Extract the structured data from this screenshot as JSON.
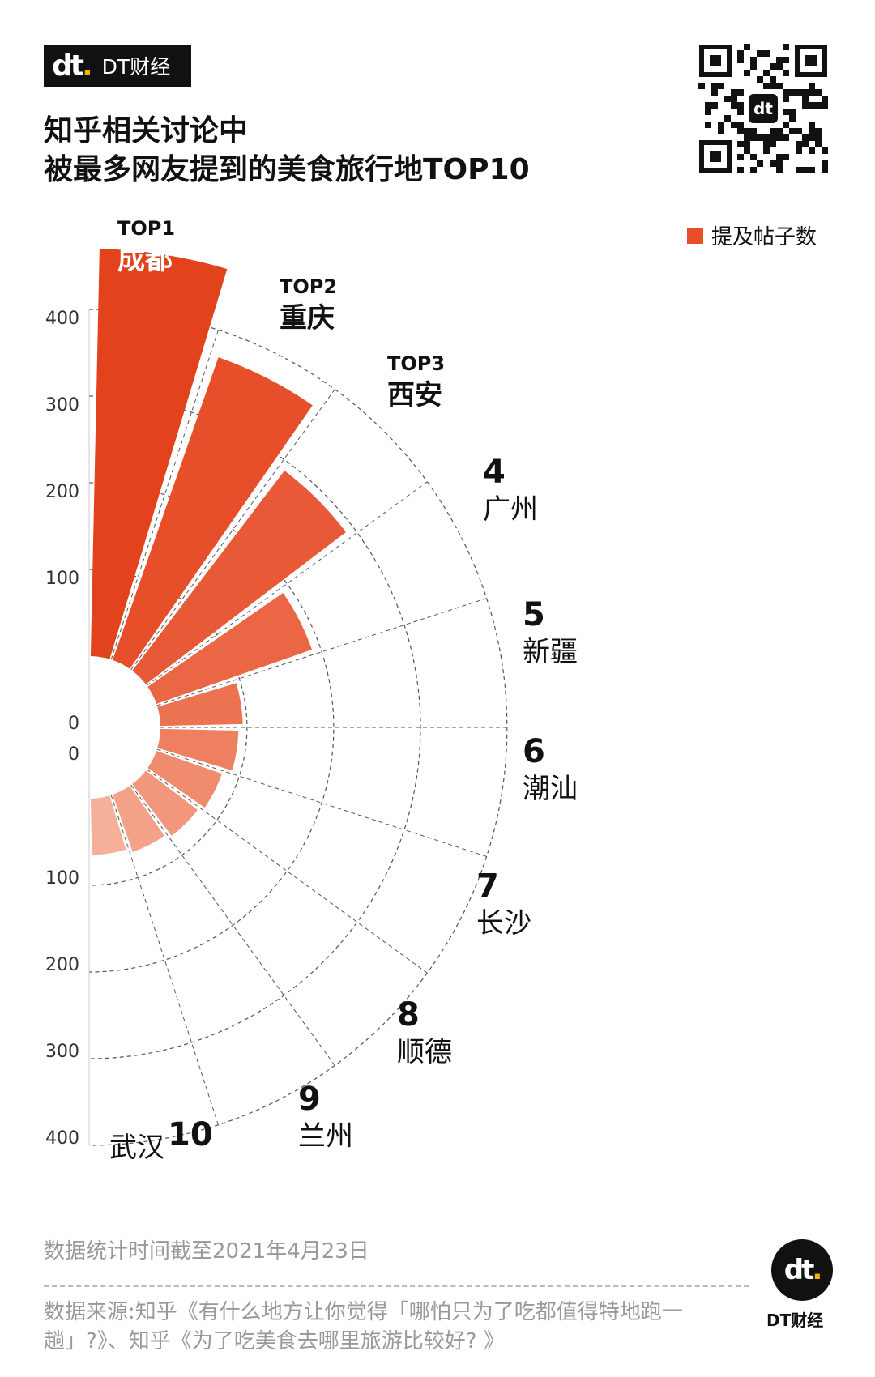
{
  "brand": {
    "mark": "dt",
    "name": "DT财经"
  },
  "title_lines": [
    "知乎相关讨论中",
    "被最多网友提到的美食旅行地TOP10"
  ],
  "legend": {
    "label": "提及帖子数",
    "color": "#e94e2b"
  },
  "colors": {
    "bar_scale": [
      "#e2431d",
      "#e64f2a",
      "#e85a37",
      "#ea6644",
      "#ec7352",
      "#ee7f60",
      "#f08b6e",
      "#f2977c",
      "#f4a38a",
      "#f6af98"
    ],
    "grid": "#555555",
    "label_dark": "#111111"
  },
  "chart_data": {
    "type": "bar",
    "variant": "radial-half",
    "series_name": "提及帖子数",
    "categories": [
      "成都",
      "重庆",
      "西安",
      "广州",
      "新疆",
      "潮汕",
      "长沙",
      "顺德",
      "兰州",
      "武汉"
    ],
    "ranks": [
      "TOP1",
      "TOP2",
      "TOP3",
      "4",
      "5",
      "6",
      "7",
      "8",
      "9",
      "10"
    ],
    "values": [
      470,
      370,
      290,
      190,
      95,
      90,
      80,
      75,
      70,
      65
    ],
    "radial_ticks_upper": [
      "400",
      "300",
      "200",
      "100",
      "0"
    ],
    "radial_ticks_lower": [
      "0",
      "100",
      "200",
      "300",
      "400"
    ],
    "rlim": [
      0,
      400
    ],
    "grid": true,
    "legend_position": "top-right"
  },
  "footer": {
    "note": "数据统计时间截至2021年4月23日",
    "source": "数据来源:知乎《有什么地方让你觉得「哪怕只为了吃都值得特地跑一趟」?》、知乎《为了吃美食去哪里旅游比较好? 》",
    "logo_mark": "dt",
    "logo_caption": "DT财经"
  }
}
